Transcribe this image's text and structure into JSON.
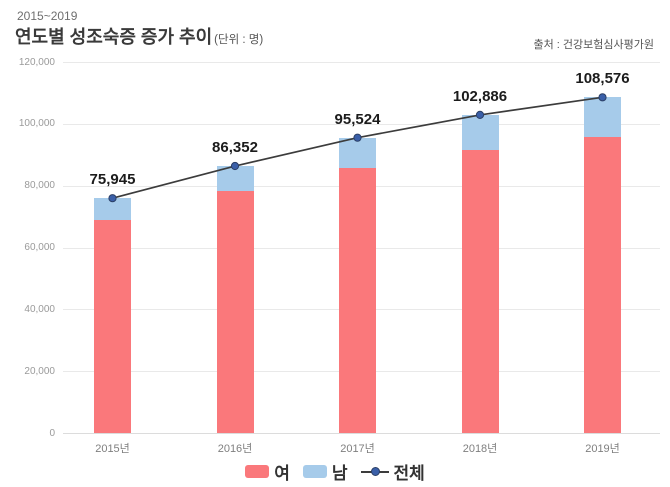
{
  "header": {
    "range": "2015~2019",
    "title": "연도별 성조숙증 증가 추이",
    "unit": "(단위 : 명)",
    "source": "출처 : 건강보험심사평가원"
  },
  "colors": {
    "female_bar": "#fa787b",
    "male_bar": "#a6cbea",
    "total_line": "#3c3c3c",
    "total_dot": "#3a5fa8",
    "grid": "#e9e9e9"
  },
  "legend": {
    "items": [
      {
        "marker": "swatch",
        "color": "#fa787b",
        "label": "여"
      },
      {
        "marker": "swatch",
        "color": "#a6cbea",
        "label": "남"
      },
      {
        "marker": "line-dot",
        "color": "#3a5fa8",
        "label": "전체"
      }
    ]
  },
  "chart_data": {
    "type": "bar",
    "subtype": "stacked-bar-with-total-line",
    "title": "연도별 성조숙증 증가 추이",
    "unit": "명",
    "categories": [
      "2015년",
      "2016년",
      "2017년",
      "2018년",
      "2019년"
    ],
    "series": [
      {
        "name": "여",
        "type": "bar",
        "color": "#fa787b",
        "estimated_from_bar_heights": true,
        "values": [
          69030,
          78396,
          85841,
          91674,
          95660
        ]
      },
      {
        "name": "남",
        "type": "bar",
        "color": "#a6cbea",
        "estimated_from_bar_heights": true,
        "values": [
          6915,
          7956,
          9683,
          11212,
          12916
        ]
      },
      {
        "name": "전체",
        "type": "line",
        "color": "#3c3c3c",
        "values": [
          75945,
          86352,
          95524,
          102886,
          108576
        ],
        "labels": [
          "75,945",
          "86,352",
          "95,524",
          "102,886",
          "108,576"
        ]
      }
    ],
    "ylim": [
      0,
      120000
    ],
    "ytick_step": 20000,
    "ytick_labels": [
      "0",
      "20,000",
      "40,000",
      "60,000",
      "80,000",
      "100,000",
      "120,000"
    ],
    "grid": "horizontal",
    "legend_position": "bottom-center"
  }
}
